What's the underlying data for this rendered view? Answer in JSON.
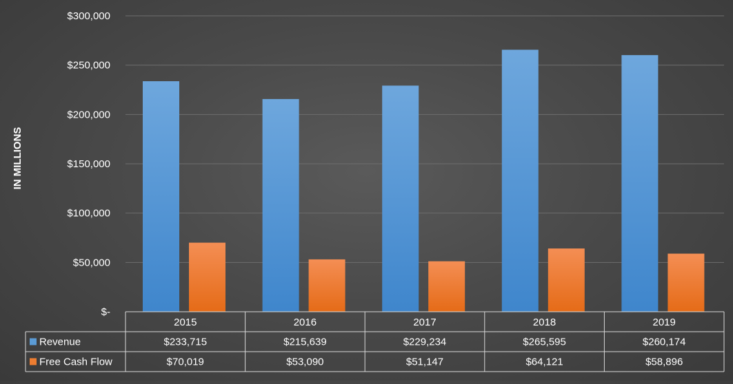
{
  "chart_data": {
    "type": "bar",
    "ylabel": "IN MILLIONS",
    "ylim": [
      0,
      300000
    ],
    "y_ticks": [
      0,
      50000,
      100000,
      150000,
      200000,
      250000,
      300000
    ],
    "y_tick_labels": [
      "$-",
      "$50,000",
      "$100,000",
      "$150,000",
      "$200,000",
      "$250,000",
      "$300,000"
    ],
    "grid": true,
    "categories": [
      "2015",
      "2016",
      "2017",
      "2018",
      "2019"
    ],
    "series": [
      {
        "name": "Revenue",
        "color": "#5b9bd5",
        "values": [
          233715,
          215639,
          229234,
          265595,
          260174
        ],
        "labels": [
          "$233,715",
          "$215,639",
          "$229,234",
          "$265,595",
          "$260,174"
        ]
      },
      {
        "name": "Free Cash Flow",
        "color": "#ed7d31",
        "values": [
          70019,
          53090,
          51147,
          64121,
          58896
        ],
        "labels": [
          "$70,019",
          "$53,090",
          "$51,147",
          "$64,121",
          "$58,896"
        ]
      }
    ],
    "legend_placement": "data-table"
  }
}
